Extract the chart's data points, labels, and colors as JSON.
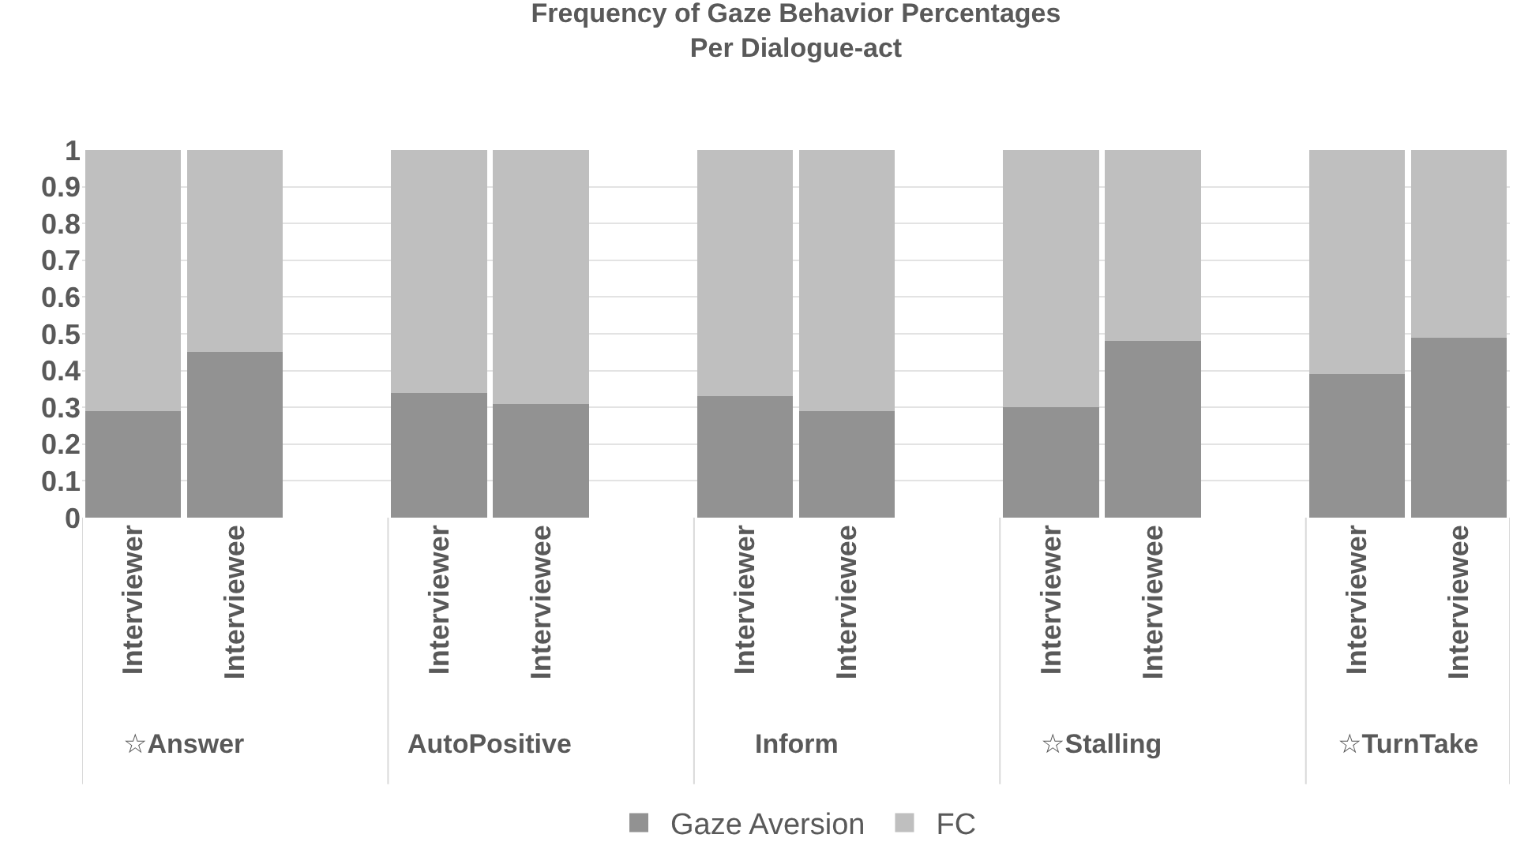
{
  "chart_data": {
    "type": "bar",
    "title": "Frequency of Gaze Behavior Percentages\nPer Dialogue-act",
    "categories": [
      "Interviewer",
      "Interviewee",
      null,
      "Interviewer",
      "Interviewee",
      null,
      "Interviewer",
      "Interviewee",
      null,
      "Interviewer",
      "Interviewee",
      null,
      "Interviewer",
      "Interviewee"
    ],
    "series": [
      {
        "name": "Gaze Aversion",
        "color": "#929292",
        "values": [
          0.29,
          0.45,
          null,
          0.34,
          0.31,
          null,
          0.33,
          0.29,
          null,
          0.3,
          0.48,
          null,
          0.39,
          0.49
        ]
      },
      {
        "name": "FC",
        "color": "#bfbfbf",
        "values": [
          0.71,
          0.55,
          null,
          0.66,
          0.69,
          null,
          0.67,
          0.71,
          null,
          0.7,
          0.52,
          null,
          0.61,
          0.51
        ]
      }
    ],
    "annotations": [
      "☆Answer",
      "AutoPositive",
      "Inform",
      "☆Stalling",
      "☆TurnTake"
    ],
    "stacked": true,
    "ylim": [
      0,
      1
    ],
    "yticks": [
      0,
      0.1,
      0.2,
      0.3,
      0.4,
      0.5,
      0.6,
      0.7,
      0.8,
      0.9,
      1
    ],
    "grid": "y",
    "legend": "bottom"
  }
}
